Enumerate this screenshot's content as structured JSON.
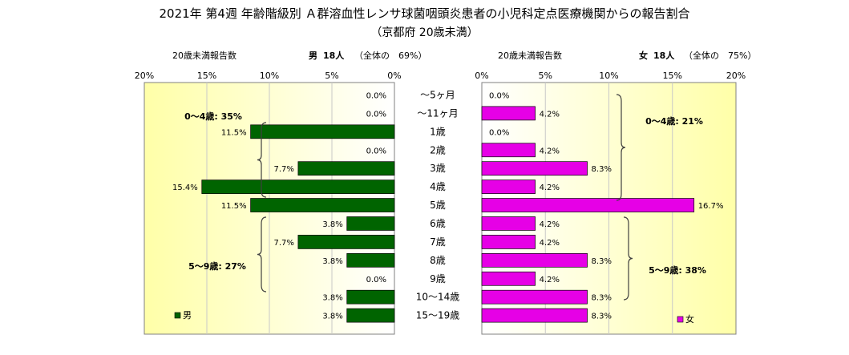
{
  "title": "2021年 第4週 年齢階級別 Ａ群溶血性レンサ球菌咽頭炎患者の小児科定点医療機関からの報告割合",
  "subtitle": "（京都府 20歳未満）",
  "male_header": {
    "axis_title": "20歳未満報告数",
    "sex": "男",
    "count": "18人",
    "share": "（全体の　69%）"
  },
  "female_header": {
    "axis_title": "20歳未満報告数",
    "sex": "女",
    "count": "18人",
    "share": "（全体の　75%）"
  },
  "colors": {
    "male": "#006400",
    "female": "#e600e6",
    "plot_bg_inner": "#ffffff",
    "plot_bg_outer": "#ffffa8"
  },
  "chart_data": [
    {
      "type": "bar",
      "orientation": "horizontal",
      "direction": "right-to-left",
      "categories": [
        "～5ヶ月",
        "～11ヶ月",
        "1歳",
        "2歳",
        "3歳",
        "4歳",
        "5歳",
        "6歳",
        "7歳",
        "8歳",
        "9歳",
        "10～14歳",
        "15～19歳"
      ],
      "series": [
        {
          "name": "男",
          "values": [
            0.0,
            0.0,
            11.5,
            0.0,
            7.7,
            15.4,
            11.5,
            3.8,
            7.7,
            3.8,
            0.0,
            3.8,
            3.8
          ],
          "data_labels": [
            "0.0%",
            "0.0%",
            "11.5%",
            "0.0%",
            "7.7%",
            "15.4%",
            "11.5%",
            "3.8%",
            "7.7%",
            "3.8%",
            "0.0%",
            "3.8%",
            "3.8%"
          ]
        }
      ],
      "xlim": [
        0,
        20
      ],
      "xticks": [
        "20%",
        "15%",
        "10%",
        "5%",
        "0%"
      ],
      "grid": true,
      "legend": "bottom-left",
      "annotations": [
        "0～4歳: 35%",
        "5～9歳: 27%"
      ]
    },
    {
      "type": "bar",
      "orientation": "horizontal",
      "direction": "left-to-right",
      "categories": [
        "～5ヶ月",
        "～11ヶ月",
        "1歳",
        "2歳",
        "3歳",
        "4歳",
        "5歳",
        "6歳",
        "7歳",
        "8歳",
        "9歳",
        "10～14歳",
        "15～19歳"
      ],
      "series": [
        {
          "name": "女",
          "values": [
            0.0,
            4.2,
            0.0,
            4.2,
            8.3,
            4.2,
            16.7,
            4.2,
            4.2,
            8.3,
            4.2,
            8.3,
            8.3
          ],
          "data_labels": [
            "0.0%",
            "4.2%",
            "0.0%",
            "4.2%",
            "8.3%",
            "4.2%",
            "16.7%",
            "4.2%",
            "4.2%",
            "8.3%",
            "4.2%",
            "8.3%",
            "8.3%"
          ]
        }
      ],
      "xlim": [
        0,
        20
      ],
      "xticks": [
        "0%",
        "5%",
        "10%",
        "15%",
        "20%"
      ],
      "grid": true,
      "legend": "bottom-right",
      "annotations": [
        "0～4歳: 21%",
        "5～9歳: 38%"
      ]
    }
  ]
}
